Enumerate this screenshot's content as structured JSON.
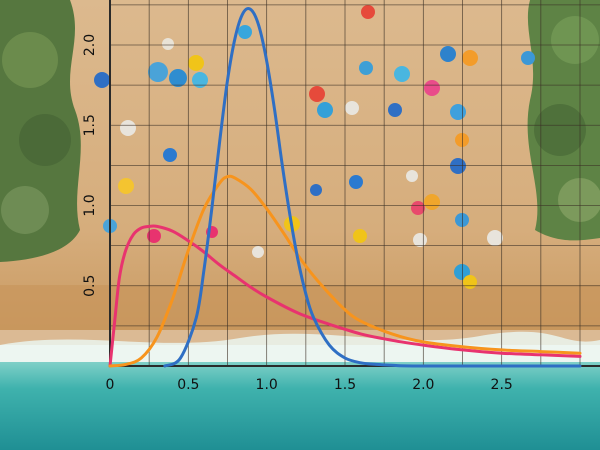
{
  "chart_data": {
    "type": "line",
    "title": "",
    "xlabel": "",
    "ylabel": "",
    "xlim": [
      0,
      3
    ],
    "ylim": [
      0,
      2.3
    ],
    "grid": true,
    "x_ticks": [
      {
        "value": 0,
        "label": "0"
      },
      {
        "value": 0.5,
        "label": "0.5"
      },
      {
        "value": 1.0,
        "label": "1.0"
      },
      {
        "value": 1.5,
        "label": "1.5"
      },
      {
        "value": 2.0,
        "label": "2.0"
      },
      {
        "value": 2.5,
        "label": "2.5"
      }
    ],
    "y_ticks": [
      {
        "value": 0.5,
        "label": "0.5"
      },
      {
        "value": 1.0,
        "label": "1.0"
      },
      {
        "value": 1.5,
        "label": "1.5"
      },
      {
        "value": 2.0,
        "label": "2.0"
      }
    ],
    "series": [
      {
        "color": "#e8336f",
        "points": [
          [
            0,
            0
          ],
          [
            0.03,
            0.28
          ],
          [
            0.06,
            0.55
          ],
          [
            0.1,
            0.72
          ],
          [
            0.15,
            0.82
          ],
          [
            0.2,
            0.86
          ],
          [
            0.25,
            0.87
          ],
          [
            0.3,
            0.87
          ],
          [
            0.4,
            0.84
          ],
          [
            0.5,
            0.78
          ],
          [
            0.6,
            0.71
          ],
          [
            0.7,
            0.63
          ],
          [
            0.8,
            0.56
          ],
          [
            0.9,
            0.49
          ],
          [
            1.0,
            0.43
          ],
          [
            1.2,
            0.33
          ],
          [
            1.4,
            0.26
          ],
          [
            1.6,
            0.2
          ],
          [
            1.8,
            0.16
          ],
          [
            2.0,
            0.13
          ],
          [
            2.25,
            0.1
          ],
          [
            2.5,
            0.08
          ],
          [
            2.75,
            0.07
          ],
          [
            3.0,
            0.06
          ]
        ]
      },
      {
        "color": "#f7941d",
        "points": [
          [
            0,
            0
          ],
          [
            0.1,
            0.01
          ],
          [
            0.2,
            0.05
          ],
          [
            0.3,
            0.18
          ],
          [
            0.4,
            0.42
          ],
          [
            0.5,
            0.72
          ],
          [
            0.6,
            0.98
          ],
          [
            0.7,
            1.14
          ],
          [
            0.75,
            1.18
          ],
          [
            0.8,
            1.17
          ],
          [
            0.9,
            1.1
          ],
          [
            1.0,
            0.98
          ],
          [
            1.1,
            0.84
          ],
          [
            1.2,
            0.69
          ],
          [
            1.3,
            0.56
          ],
          [
            1.4,
            0.45
          ],
          [
            1.5,
            0.35
          ],
          [
            1.6,
            0.28
          ],
          [
            1.8,
            0.2
          ],
          [
            2.0,
            0.15
          ],
          [
            2.25,
            0.12
          ],
          [
            2.5,
            0.1
          ],
          [
            2.75,
            0.09
          ],
          [
            3.0,
            0.08
          ]
        ]
      },
      {
        "color": "#2f6fc4",
        "points": [
          [
            0.35,
            0
          ],
          [
            0.45,
            0.05
          ],
          [
            0.55,
            0.3
          ],
          [
            0.6,
            0.6
          ],
          [
            0.65,
            0.98
          ],
          [
            0.7,
            1.4
          ],
          [
            0.75,
            1.78
          ],
          [
            0.8,
            2.05
          ],
          [
            0.85,
            2.2
          ],
          [
            0.9,
            2.22
          ],
          [
            0.95,
            2.12
          ],
          [
            1.0,
            1.9
          ],
          [
            1.05,
            1.6
          ],
          [
            1.1,
            1.25
          ],
          [
            1.15,
            0.93
          ],
          [
            1.2,
            0.66
          ],
          [
            1.25,
            0.45
          ],
          [
            1.3,
            0.3
          ],
          [
            1.4,
            0.13
          ],
          [
            1.5,
            0.05
          ],
          [
            1.6,
            0.02
          ],
          [
            1.7,
            0.01
          ],
          [
            1.8,
            0.005
          ],
          [
            2.0,
            0
          ],
          [
            3.0,
            0
          ]
        ]
      }
    ]
  },
  "colors": {
    "sand": "#d9b487",
    "sea": "#3fb6b0",
    "foliage": "#5e7d45",
    "grid": "#3a2f25",
    "axis": "#2a2a2a"
  }
}
